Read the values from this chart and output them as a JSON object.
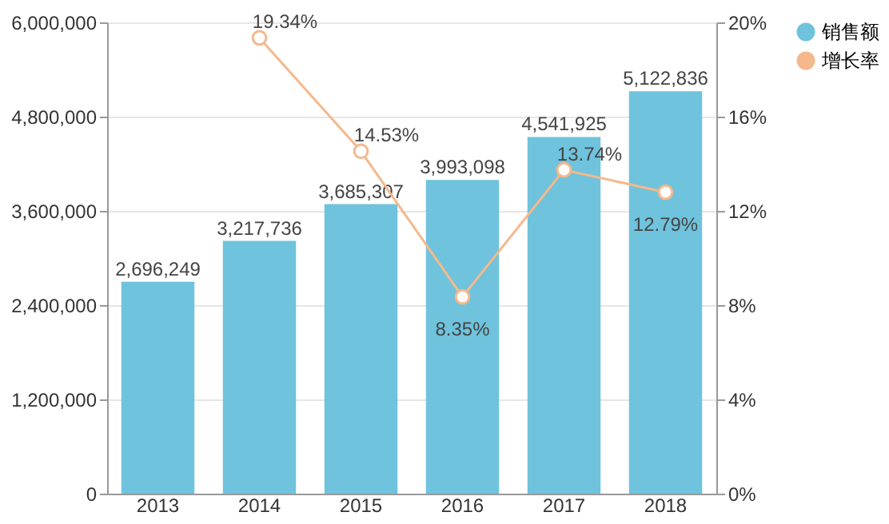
{
  "chart_data": {
    "type": "bar",
    "categories": [
      "2013",
      "2014",
      "2015",
      "2016",
      "2017",
      "2018"
    ],
    "series": [
      {
        "name": "销售额",
        "color": "#6fc3dc",
        "values": [
          2696249,
          3217736,
          3685307,
          3993098,
          4541925,
          5122836
        ],
        "value_labels": [
          "2,696,249",
          "3,217,736",
          "3,685,307",
          "3,993,098",
          "4,541,925",
          "5,122,836"
        ]
      },
      {
        "name": "增长率",
        "type": "line",
        "axis": "y2",
        "color": "#f5b88c",
        "marker": "circle",
        "values": [
          null,
          19.34,
          14.53,
          8.35,
          13.74,
          12.79
        ],
        "value_labels": [
          null,
          "19.34%",
          "14.53%",
          "8.35%",
          "13.74%",
          "12.79%"
        ]
      }
    ],
    "ylim": [
      0,
      6000000
    ],
    "yticks": [
      0,
      {
        "value": 1200000,
        "label": "1,200,000"
      },
      {
        "value": 2400000,
        "label": "2,400,000"
      },
      {
        "value": 3600000,
        "label": "3,600,000"
      },
      {
        "value": 4800000,
        "label": "4,800,000"
      },
      {
        "value": 6000000,
        "label": "6,000,000"
      }
    ],
    "y2lim": [
      0,
      20
    ],
    "y2ticks": [
      {
        "value": 0,
        "label": "0%"
      },
      {
        "value": 4,
        "label": "4%"
      },
      {
        "value": 8,
        "label": "8%"
      },
      {
        "value": 12,
        "label": "12%"
      },
      {
        "value": 16,
        "label": "16%"
      },
      {
        "value": 20,
        "label": "20%"
      }
    ],
    "grid": "y",
    "legend": "right"
  }
}
